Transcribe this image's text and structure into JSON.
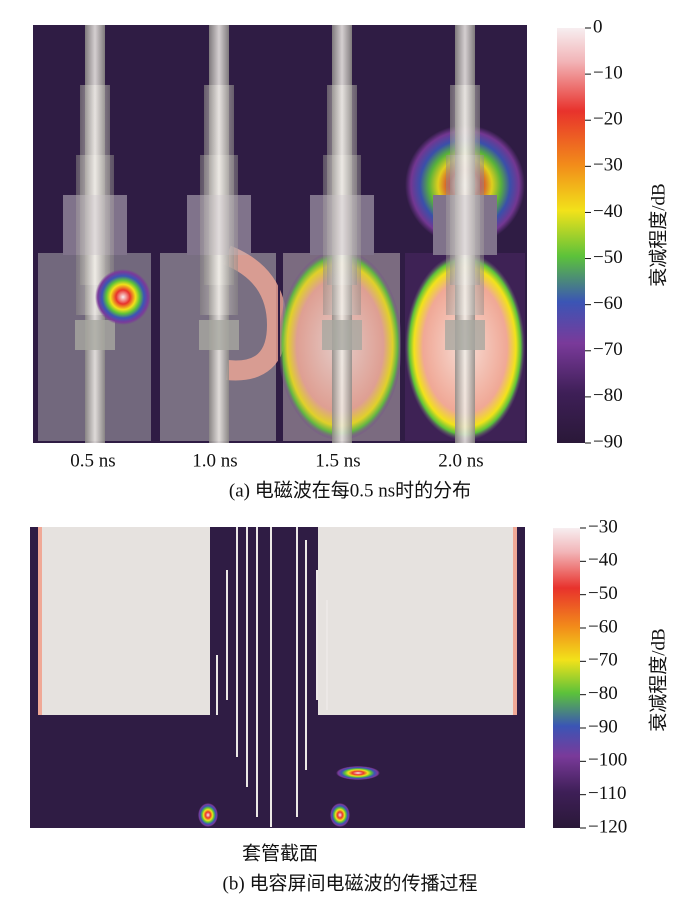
{
  "panel_a": {
    "frames": [
      "0.5 ns",
      "1.0 ns",
      "1.5 ns",
      "2.0 ns"
    ],
    "caption": "(a)  电磁波在每0.5 ns时的分布",
    "colorbar": {
      "label": "衰减程度/dB",
      "ticks": [
        "0",
        "−10",
        "−20",
        "−30",
        "−40",
        "−50",
        "−60",
        "−70",
        "−80",
        "−90"
      ]
    }
  },
  "panel_b": {
    "image_label": "套管截面",
    "caption": "(b)  电容屏间电磁波的传播过程",
    "colorbar": {
      "label": "衰减程度/dB",
      "ticks": [
        "−30",
        "−40",
        "−50",
        "−60",
        "−70",
        "−80",
        "−90",
        "−100",
        "−110",
        "−120"
      ]
    }
  }
}
